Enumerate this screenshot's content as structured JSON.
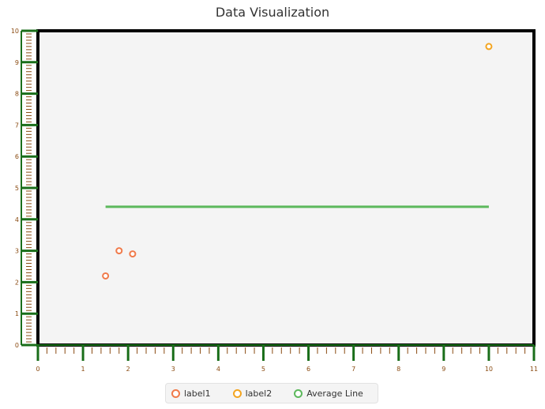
{
  "chart_data": {
    "type": "scatter",
    "title": "Data Visualization",
    "xlabel": "",
    "ylabel": "",
    "xlim": [
      0,
      11
    ],
    "ylim": [
      0,
      10
    ],
    "x_ticks": [
      "0",
      "1",
      "2",
      "3",
      "4",
      "5",
      "6",
      "7",
      "8",
      "9",
      "10",
      "11"
    ],
    "y_ticks": [
      "0",
      "1",
      "2",
      "3",
      "4",
      "5",
      "6",
      "7",
      "8",
      "9",
      "10"
    ],
    "grid": false,
    "legend_position": "bottom",
    "series": [
      {
        "name": "label1",
        "type": "scatter",
        "color": "#f07a4a",
        "points": [
          {
            "x": 1.5,
            "y": 2.2
          },
          {
            "x": 1.8,
            "y": 3.0
          },
          {
            "x": 2.1,
            "y": 2.9
          }
        ]
      },
      {
        "name": "label2",
        "type": "scatter",
        "color": "#f3a521",
        "points": [
          {
            "x": 10.0,
            "y": 9.5
          }
        ]
      },
      {
        "name": "Average Line",
        "type": "line",
        "color": "#5cb85c",
        "points": [
          {
            "x": 1.5,
            "y": 4.4
          },
          {
            "x": 10.0,
            "y": 4.4
          }
        ]
      }
    ]
  }
}
